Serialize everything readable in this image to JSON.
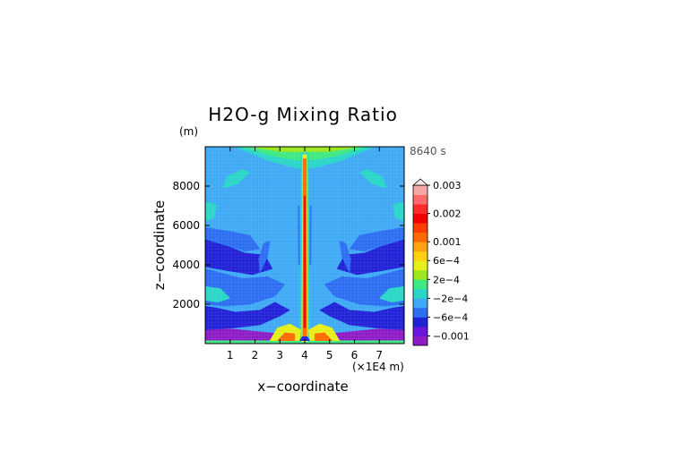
{
  "chart_data": {
    "type": "heatmap",
    "title": "H2O-g Mixing Ratio",
    "y_units": "(m)",
    "time_label": "8640 s",
    "xlabel": "x−coordinate",
    "ylabel": "z−coordinate",
    "x_units_label": "(×1E4 m)",
    "xlim": [
      0,
      8
    ],
    "ylim": [
      0,
      10000
    ],
    "x_ticks": [
      {
        "value": 1,
        "label": "1"
      },
      {
        "value": 2,
        "label": "2"
      },
      {
        "value": 3,
        "label": "3"
      },
      {
        "value": 4,
        "label": "4"
      },
      {
        "value": 5,
        "label": "5"
      },
      {
        "value": 6,
        "label": "6"
      },
      {
        "value": 7,
        "label": "7"
      }
    ],
    "y_ticks": [
      {
        "value": 2000,
        "label": "2000"
      },
      {
        "value": 4000,
        "label": "4000"
      },
      {
        "value": 6000,
        "label": "6000"
      },
      {
        "value": 8000,
        "label": "8000"
      }
    ],
    "colorbar": {
      "levels": [
        {
          "color": "#8d1bc6"
        },
        {
          "color": "#6a16dc"
        },
        {
          "color": "#2121d8"
        },
        {
          "color": "#2c6ef2"
        },
        {
          "color": "#3fa9f5"
        },
        {
          "color": "#29d6c8"
        },
        {
          "color": "#3ee882"
        },
        {
          "color": "#9be81c"
        },
        {
          "color": "#e6ef1a"
        },
        {
          "color": "#ffcf12"
        },
        {
          "color": "#ffa210"
        },
        {
          "color": "#ff6a00"
        },
        {
          "color": "#ff3c00"
        },
        {
          "color": "#f00000"
        },
        {
          "color": "#ff2a2a"
        },
        {
          "color": "#ff6a6a"
        },
        {
          "color": "#f7a6a6"
        }
      ],
      "labels": [
        {
          "index": 1,
          "label": "−0.001"
        },
        {
          "index": 3,
          "label": "−6e−4"
        },
        {
          "index": 5,
          "label": "−2e−4"
        },
        {
          "index": 7,
          "label": "2e−4"
        },
        {
          "index": 9,
          "label": "6e−4"
        },
        {
          "index": 11,
          "label": "0.001"
        },
        {
          "index": 14,
          "label": "0.002"
        },
        {
          "index": 17,
          "label": "0.003"
        }
      ]
    },
    "background_color": "#3fa9f5",
    "regions": [
      {
        "name": "surface-purple-layer",
        "color": "#8d1bc6",
        "poly": [
          [
            0,
            0
          ],
          [
            8,
            0
          ],
          [
            8,
            700
          ],
          [
            7,
            750
          ],
          [
            5,
            500
          ],
          [
            4.3,
            300
          ],
          [
            3.7,
            300
          ],
          [
            3,
            500
          ],
          [
            1,
            750
          ],
          [
            0,
            700
          ]
        ]
      },
      {
        "name": "surface-green-line",
        "color": "#3ee882",
        "poly": [
          [
            0,
            0
          ],
          [
            8,
            0
          ],
          [
            8,
            150
          ],
          [
            0,
            150
          ]
        ]
      },
      {
        "name": "left-dark-blue-band",
        "color": "#2121d8",
        "poly": [
          [
            0,
            700
          ],
          [
            1.2,
            800
          ],
          [
            2.2,
            950
          ],
          [
            3,
            1400
          ],
          [
            3.4,
            1700
          ],
          [
            2.8,
            2100
          ],
          [
            2.2,
            1700
          ],
          [
            1.2,
            1600
          ],
          [
            0.5,
            1800
          ],
          [
            0,
            1900
          ]
        ]
      },
      {
        "name": "right-dark-blue-band",
        "color": "#2121d8",
        "poly": [
          [
            8,
            700
          ],
          [
            6.8,
            800
          ],
          [
            5.8,
            950
          ],
          [
            5,
            1400
          ],
          [
            4.6,
            1700
          ],
          [
            5.2,
            2100
          ],
          [
            5.8,
            1700
          ],
          [
            6.8,
            1600
          ],
          [
            7.5,
            1800
          ],
          [
            8,
            1900
          ]
        ]
      },
      {
        "name": "left-blue-mid",
        "color": "#2c6ef2",
        "poly": [
          [
            0,
            2000
          ],
          [
            0.8,
            1900
          ],
          [
            1.8,
            2000
          ],
          [
            2.8,
            2400
          ],
          [
            3.2,
            3000
          ],
          [
            2.5,
            3400
          ],
          [
            1.5,
            3300
          ],
          [
            0.6,
            3600
          ],
          [
            0,
            3800
          ]
        ]
      },
      {
        "name": "right-blue-mid",
        "color": "#2c6ef2",
        "poly": [
          [
            8,
            2000
          ],
          [
            7.2,
            1900
          ],
          [
            6.2,
            2000
          ],
          [
            5.2,
            2400
          ],
          [
            4.8,
            3000
          ],
          [
            5.5,
            3400
          ],
          [
            6.5,
            3300
          ],
          [
            7.4,
            3600
          ],
          [
            8,
            3800
          ]
        ]
      },
      {
        "name": "left-dark-upper",
        "color": "#2121d8",
        "poly": [
          [
            0,
            3900
          ],
          [
            0.9,
            3700
          ],
          [
            1.9,
            3500
          ],
          [
            2.7,
            3800
          ],
          [
            2.4,
            4500
          ],
          [
            1.6,
            4600
          ],
          [
            0.8,
            5000
          ],
          [
            0,
            5300
          ]
        ]
      },
      {
        "name": "right-dark-upper",
        "color": "#2121d8",
        "poly": [
          [
            8,
            3900
          ],
          [
            7.1,
            3700
          ],
          [
            6.1,
            3500
          ],
          [
            5.3,
            3800
          ],
          [
            5.6,
            4500
          ],
          [
            6.4,
            4600
          ],
          [
            7.2,
            5000
          ],
          [
            8,
            5300
          ]
        ]
      },
      {
        "name": "left-blue-upper",
        "color": "#2c6ef2",
        "poly": [
          [
            0,
            5300
          ],
          [
            0.8,
            5000
          ],
          [
            1.6,
            4700
          ],
          [
            2.2,
            4800
          ],
          [
            1.8,
            5500
          ],
          [
            1.0,
            5700
          ],
          [
            0,
            5900
          ]
        ]
      },
      {
        "name": "right-blue-upper",
        "color": "#2c6ef2",
        "poly": [
          [
            8,
            5300
          ],
          [
            7.2,
            5000
          ],
          [
            6.4,
            4700
          ],
          [
            5.8,
            4800
          ],
          [
            6.2,
            5500
          ],
          [
            7.0,
            5700
          ],
          [
            8,
            5900
          ]
        ]
      },
      {
        "name": "left-plume-arm",
        "color": "#2c6ef2",
        "poly": [
          [
            2.2,
            3600
          ],
          [
            2.5,
            4400
          ],
          [
            2.6,
            5200
          ],
          [
            2.35,
            5100
          ],
          [
            2.15,
            4300
          ]
        ]
      },
      {
        "name": "right-plume-arm",
        "color": "#2c6ef2",
        "poly": [
          [
            5.8,
            3600
          ],
          [
            5.5,
            4400
          ],
          [
            5.4,
            5200
          ],
          [
            5.65,
            5100
          ],
          [
            5.85,
            4300
          ]
        ]
      },
      {
        "name": "left-cyan-blob-low",
        "color": "#29d6c8",
        "poly": [
          [
            0,
            2200
          ],
          [
            0.5,
            2100
          ],
          [
            1,
            2300
          ],
          [
            0.6,
            2800
          ],
          [
            0,
            2900
          ]
        ]
      },
      {
        "name": "right-cyan-blob-low",
        "color": "#29d6c8",
        "poly": [
          [
            8,
            2200
          ],
          [
            7.5,
            2100
          ],
          [
            7,
            2300
          ],
          [
            7.4,
            2800
          ],
          [
            8,
            2900
          ]
        ]
      },
      {
        "name": "left-cyan-blob-high",
        "color": "#29d6c8",
        "poly": [
          [
            0,
            6200
          ],
          [
            0.35,
            6400
          ],
          [
            0.45,
            7000
          ],
          [
            0.2,
            7200
          ],
          [
            0,
            7100
          ]
        ]
      },
      {
        "name": "right-cyan-blob-high",
        "color": "#29d6c8",
        "poly": [
          [
            8,
            6200
          ],
          [
            7.65,
            6400
          ],
          [
            7.55,
            7000
          ],
          [
            7.8,
            7200
          ],
          [
            8,
            7100
          ]
        ]
      },
      {
        "name": "left-cyan-oval",
        "color": "#29d6c8",
        "poly": [
          [
            0.7,
            7900
          ],
          [
            1.3,
            8100
          ],
          [
            1.8,
            8700
          ],
          [
            1.5,
            8850
          ],
          [
            0.9,
            8500
          ]
        ]
      },
      {
        "name": "right-cyan-oval",
        "color": "#29d6c8",
        "poly": [
          [
            7.3,
            7900
          ],
          [
            6.7,
            8100
          ],
          [
            6.2,
            8700
          ],
          [
            6.5,
            8850
          ],
          [
            7.1,
            8500
          ]
        ]
      },
      {
        "name": "top-cyan-band",
        "color": "#29d6c8",
        "poly": [
          [
            1.2,
            10000
          ],
          [
            6.8,
            10000
          ],
          [
            5.5,
            9300
          ],
          [
            4.3,
            8900
          ],
          [
            3.7,
            8900
          ],
          [
            2.5,
            9300
          ]
        ]
      },
      {
        "name": "top-green-band",
        "color": "#3ee882",
        "poly": [
          [
            1.5,
            10000
          ],
          [
            6.5,
            10000
          ],
          [
            5.2,
            9500
          ],
          [
            4.2,
            9300
          ],
          [
            3.8,
            9300
          ],
          [
            2.8,
            9500
          ]
        ]
      },
      {
        "name": "top-yellow-band",
        "color": "#9be81c",
        "poly": [
          [
            1.8,
            10000
          ],
          [
            6.2,
            10000
          ],
          [
            5,
            9750
          ],
          [
            3,
            9750
          ]
        ]
      },
      {
        "name": "plume-cyan-sheath",
        "color": "#29d6c8",
        "poly": [
          [
            3.8,
            100
          ],
          [
            4.2,
            100
          ],
          [
            4.15,
            9700
          ],
          [
            3.85,
            9700
          ]
        ]
      },
      {
        "name": "plume-yellow-sheath",
        "color": "#e6ef1a",
        "poly": [
          [
            3.88,
            100
          ],
          [
            4.12,
            100
          ],
          [
            4.08,
            9600
          ],
          [
            3.92,
            9600
          ]
        ]
      },
      {
        "name": "plume-orange-core",
        "color": "#ff6a00",
        "poly": [
          [
            3.92,
            200
          ],
          [
            4.08,
            200
          ],
          [
            4.06,
            9400
          ],
          [
            3.94,
            9400
          ]
        ]
      },
      {
        "name": "plume-red-core",
        "color": "#f00000",
        "poly": [
          [
            3.96,
            800
          ],
          [
            4.04,
            800
          ],
          [
            4.03,
            7500
          ],
          [
            3.97,
            7500
          ]
        ]
      },
      {
        "name": "left-base-yellow",
        "color": "#e6ef1a",
        "poly": [
          [
            2.6,
            150
          ],
          [
            3.8,
            150
          ],
          [
            3.85,
            700
          ],
          [
            3.4,
            1000
          ],
          [
            2.9,
            800
          ]
        ]
      },
      {
        "name": "left-base-orange",
        "color": "#ff6a00",
        "poly": [
          [
            2.9,
            150
          ],
          [
            3.6,
            150
          ],
          [
            3.6,
            500
          ],
          [
            3.2,
            550
          ]
        ]
      },
      {
        "name": "right-base-yellow",
        "color": "#e6ef1a",
        "poly": [
          [
            5.4,
            150
          ],
          [
            4.2,
            150
          ],
          [
            4.15,
            700
          ],
          [
            4.6,
            1000
          ],
          [
            5.1,
            800
          ]
        ]
      },
      {
        "name": "right-base-orange",
        "color": "#ff6a00",
        "poly": [
          [
            5.1,
            150
          ],
          [
            4.4,
            150
          ],
          [
            4.4,
            500
          ],
          [
            4.8,
            550
          ]
        ]
      },
      {
        "name": "base-blue-dip",
        "color": "#2121d8",
        "poly": [
          [
            3.8,
            150
          ],
          [
            4.2,
            150
          ],
          [
            4.1,
            350
          ],
          [
            3.9,
            350
          ]
        ]
      },
      {
        "name": "left-plume-streak",
        "color": "#2c6ef2",
        "poly": [
          [
            3.75,
            4000
          ],
          [
            3.8,
            4000
          ],
          [
            3.78,
            7000
          ],
          [
            3.73,
            7000
          ]
        ]
      },
      {
        "name": "right-plume-streak",
        "color": "#2c6ef2",
        "poly": [
          [
            4.25,
            4000
          ],
          [
            4.2,
            4000
          ],
          [
            4.22,
            7000
          ],
          [
            4.27,
            7000
          ]
        ]
      }
    ]
  }
}
